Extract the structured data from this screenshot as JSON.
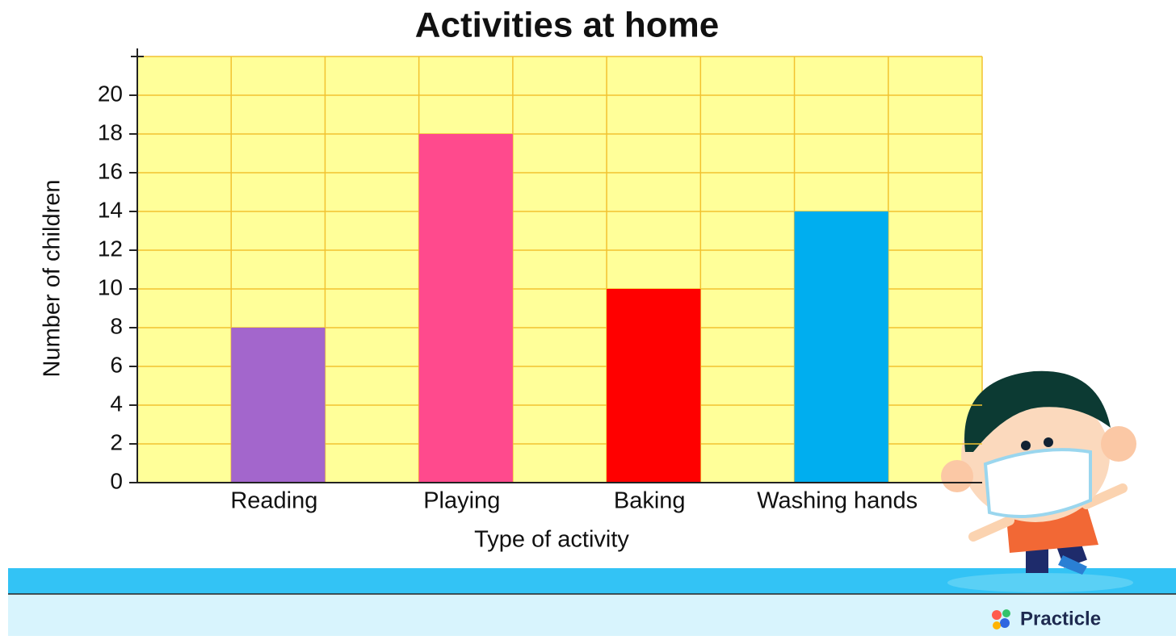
{
  "chart_data": {
    "type": "bar",
    "title": "Activities at home",
    "x_label": "Type of activity",
    "y_label": "Number of children",
    "categories": [
      "Reading",
      "Playing",
      "Baking",
      "Washing hands"
    ],
    "values": [
      8,
      18,
      10,
      14
    ],
    "colors": [
      "#a366cc",
      "#ff4a8d",
      "#ff0000",
      "#00aeef"
    ],
    "ylim": [
      0,
      22
    ],
    "yticks": [
      0,
      2,
      4,
      6,
      8,
      10,
      12,
      14,
      16,
      18,
      20
    ],
    "grid": true
  },
  "brand": "Practicle"
}
